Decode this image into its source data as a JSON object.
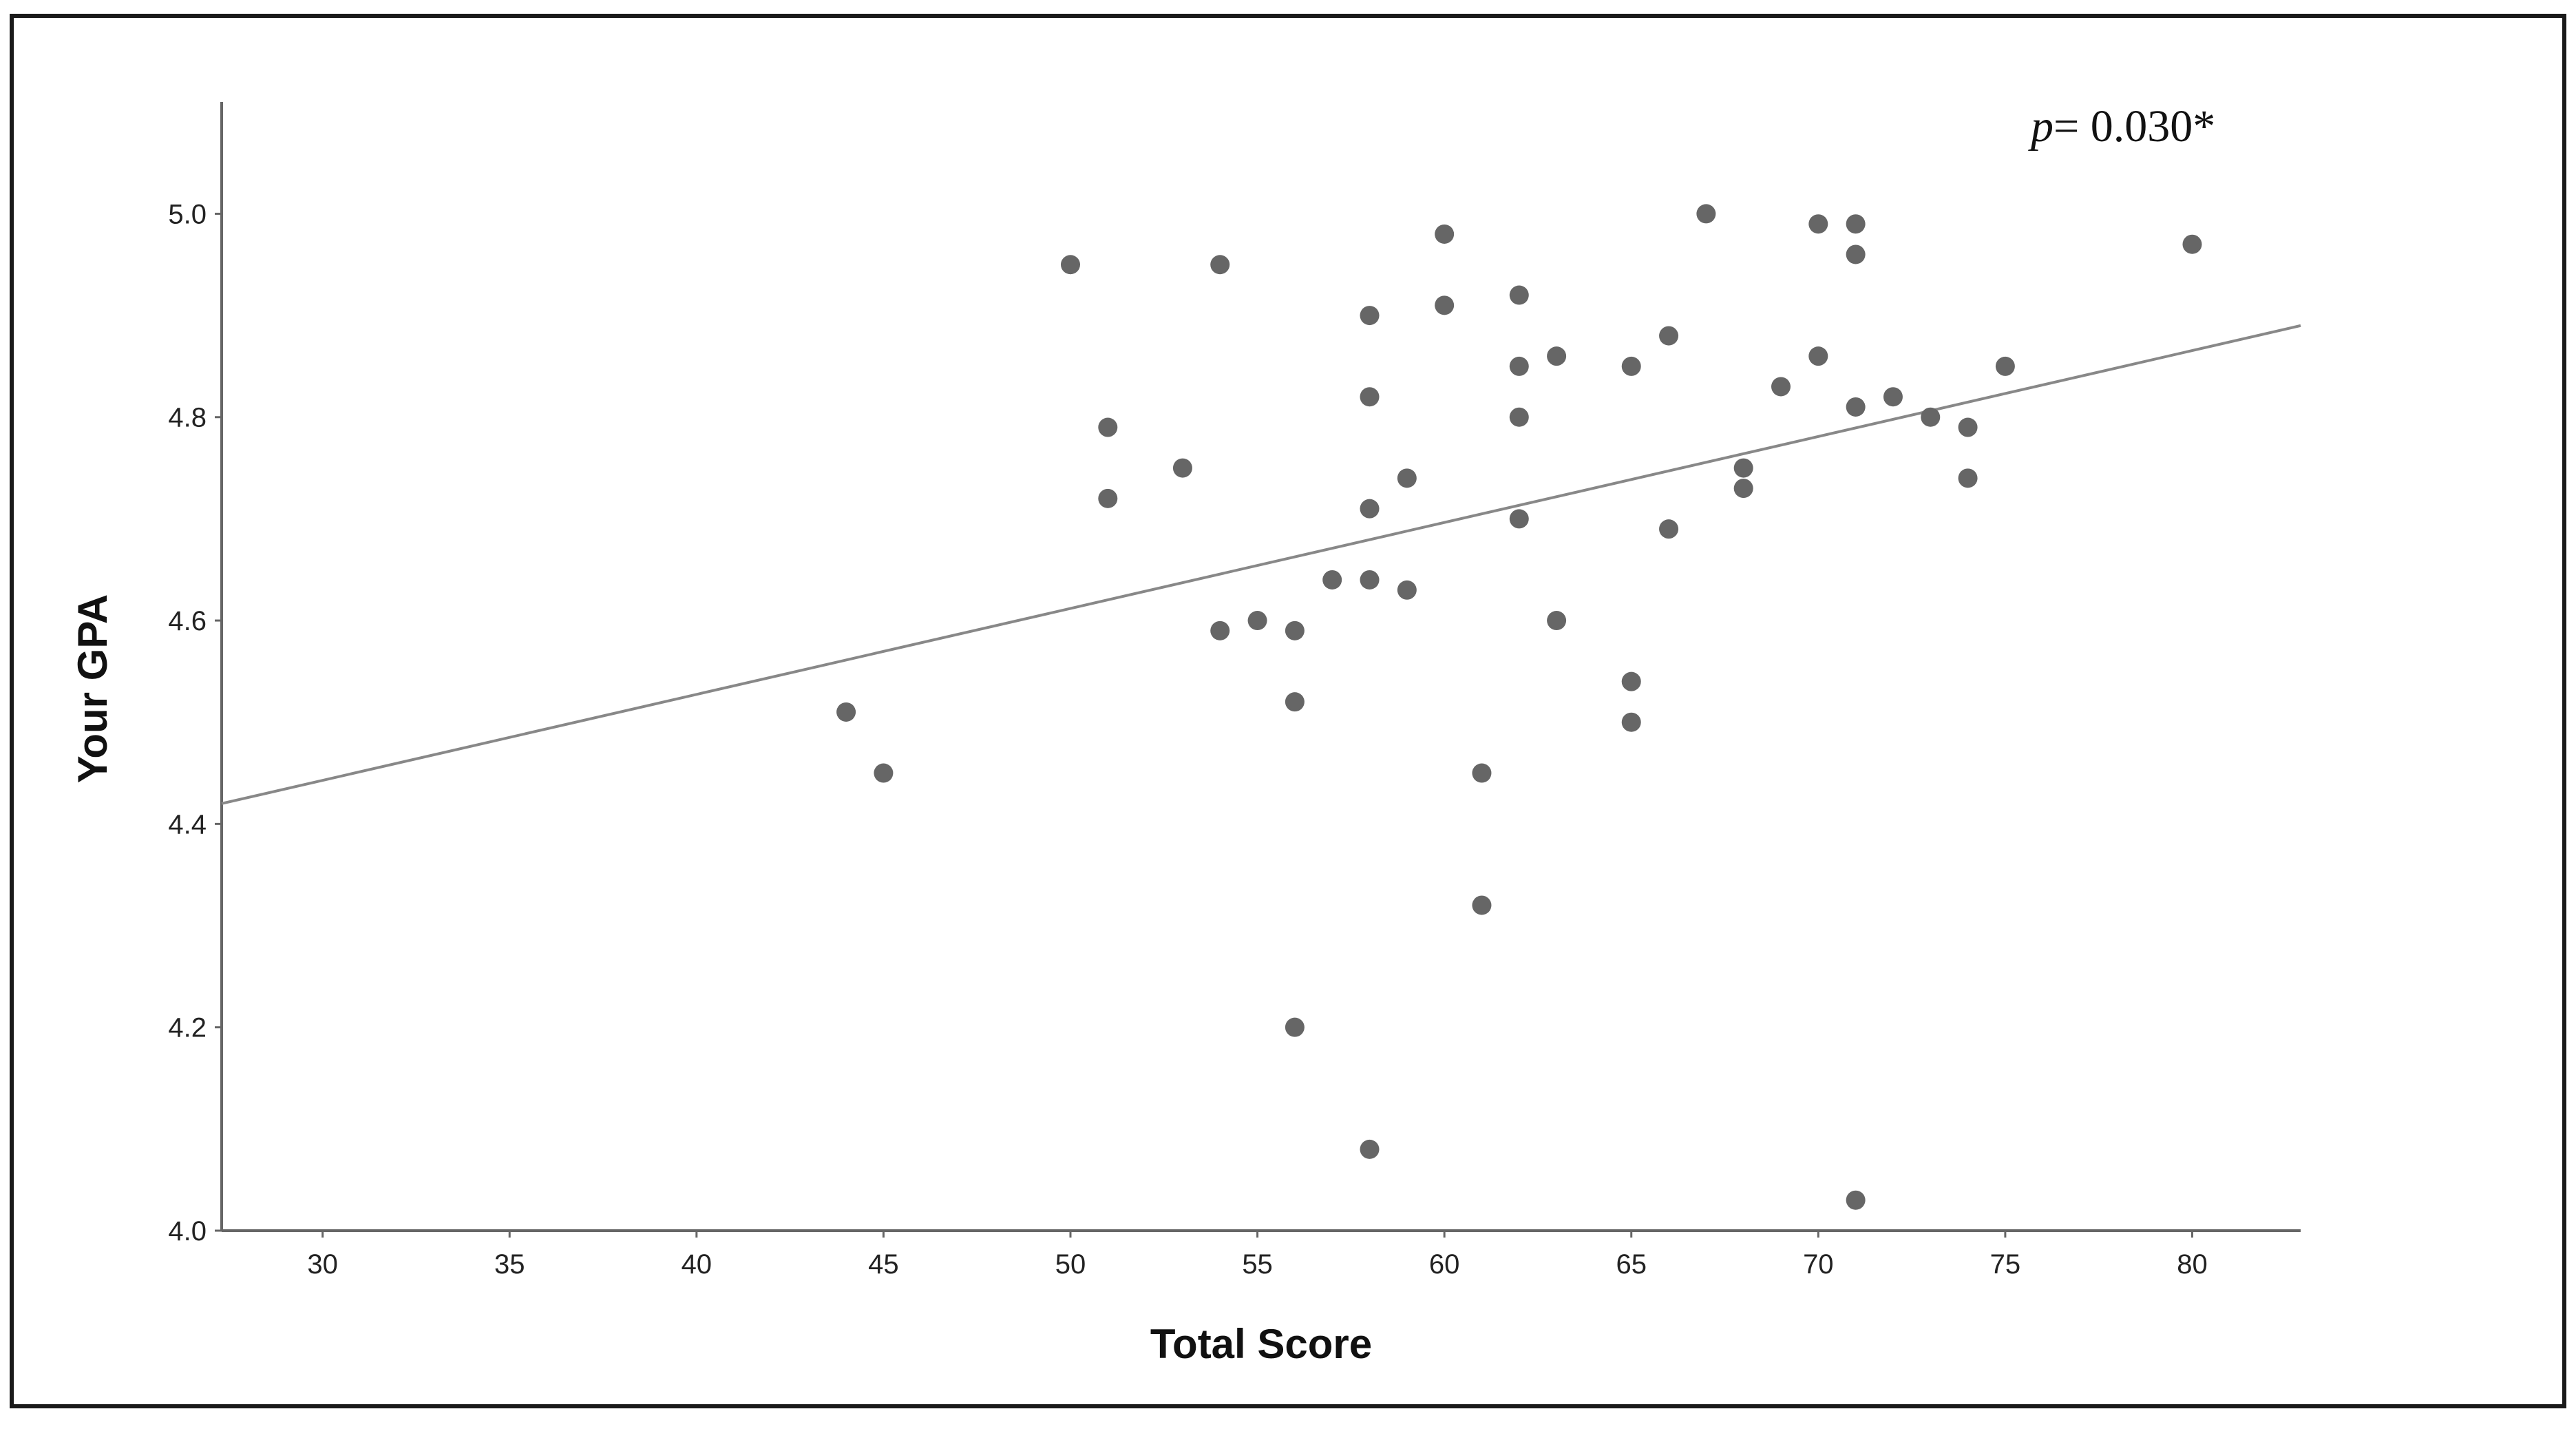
{
  "chart_data": {
    "type": "scatter",
    "title": "",
    "xlabel": "Total Score",
    "ylabel": "Your GPA",
    "xlim": [
      27.3,
      82.9
    ],
    "ylim": [
      4.0,
      5.11
    ],
    "xticks": [
      30,
      35,
      40,
      45,
      50,
      55,
      60,
      65,
      70,
      75,
      80
    ],
    "yticks": [
      4.0,
      4.2,
      4.4,
      4.6,
      4.8,
      5.0
    ],
    "xtick_labels": [
      "30",
      "35",
      "40",
      "45",
      "50",
      "55",
      "60",
      "65",
      "70",
      "75",
      "80"
    ],
    "ytick_labels": [
      "4.0",
      "4.2",
      "4.4",
      "4.6",
      "4.8",
      "5.0"
    ],
    "grid": false,
    "marker_color": "#666666",
    "line_color": "#888888",
    "annotation": {
      "italic_part": "p",
      "text_part": "= 0.030*"
    },
    "points": [
      {
        "x": 44,
        "y": 4.51
      },
      {
        "x": 45,
        "y": 4.45
      },
      {
        "x": 50,
        "y": 4.95
      },
      {
        "x": 51,
        "y": 4.79
      },
      {
        "x": 51,
        "y": 4.72
      },
      {
        "x": 53,
        "y": 4.75
      },
      {
        "x": 54,
        "y": 4.95
      },
      {
        "x": 54,
        "y": 4.59
      },
      {
        "x": 55,
        "y": 4.6
      },
      {
        "x": 56,
        "y": 4.59
      },
      {
        "x": 56,
        "y": 4.52
      },
      {
        "x": 56,
        "y": 4.2
      },
      {
        "x": 57,
        "y": 4.64
      },
      {
        "x": 58,
        "y": 4.9
      },
      {
        "x": 58,
        "y": 4.82
      },
      {
        "x": 58,
        "y": 4.71
      },
      {
        "x": 58,
        "y": 4.64
      },
      {
        "x": 58,
        "y": 4.08
      },
      {
        "x": 59,
        "y": 4.74
      },
      {
        "x": 59,
        "y": 4.63
      },
      {
        "x": 60,
        "y": 4.98
      },
      {
        "x": 60,
        "y": 4.91
      },
      {
        "x": 61,
        "y": 4.45
      },
      {
        "x": 61,
        "y": 4.32
      },
      {
        "x": 62,
        "y": 4.92
      },
      {
        "x": 62,
        "y": 4.85
      },
      {
        "x": 62,
        "y": 4.8
      },
      {
        "x": 62,
        "y": 4.7
      },
      {
        "x": 63,
        "y": 4.86
      },
      {
        "x": 63,
        "y": 4.6
      },
      {
        "x": 65,
        "y": 4.85
      },
      {
        "x": 65,
        "y": 4.54
      },
      {
        "x": 65,
        "y": 4.5
      },
      {
        "x": 66,
        "y": 4.88
      },
      {
        "x": 66,
        "y": 4.69
      },
      {
        "x": 67,
        "y": 5.0
      },
      {
        "x": 68,
        "y": 4.75
      },
      {
        "x": 68,
        "y": 4.73
      },
      {
        "x": 69,
        "y": 4.83
      },
      {
        "x": 70,
        "y": 4.99
      },
      {
        "x": 70,
        "y": 4.86
      },
      {
        "x": 71,
        "y": 4.99
      },
      {
        "x": 71,
        "y": 4.96
      },
      {
        "x": 71,
        "y": 4.81
      },
      {
        "x": 71,
        "y": 4.03
      },
      {
        "x": 72,
        "y": 4.82
      },
      {
        "x": 73,
        "y": 4.8
      },
      {
        "x": 74,
        "y": 4.79
      },
      {
        "x": 74,
        "y": 4.74
      },
      {
        "x": 75,
        "y": 4.85
      },
      {
        "x": 80,
        "y": 4.97
      }
    ],
    "fit_line": {
      "x": [
        27.3,
        82.9
      ],
      "y": [
        4.42,
        4.89
      ]
    }
  }
}
